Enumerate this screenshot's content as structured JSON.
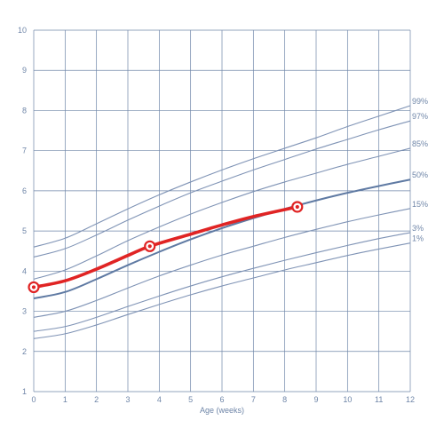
{
  "chart_data": {
    "type": "line",
    "title": "",
    "xlabel": "Age (weeks)",
    "ylabel": "",
    "xlim": [
      0,
      12
    ],
    "ylim": [
      1,
      10
    ],
    "grid": true,
    "x_ticks": [
      "0",
      "1",
      "2",
      "3",
      "4",
      "5",
      "6",
      "7",
      "8",
      "9",
      "10",
      "11",
      "12"
    ],
    "y_ticks": [
      "1",
      "2",
      "3",
      "4",
      "5",
      "6",
      "7",
      "8",
      "9",
      "10"
    ],
    "x": [
      0,
      1,
      2,
      3,
      4,
      5,
      6,
      7,
      8,
      9,
      10,
      11,
      12
    ],
    "percentile_curves": [
      {
        "name": "99%",
        "values": [
          4.6,
          4.82,
          5.18,
          5.55,
          5.9,
          6.22,
          6.52,
          6.8,
          7.06,
          7.32,
          7.6,
          7.86,
          8.12
        ]
      },
      {
        "name": "97%",
        "values": [
          4.35,
          4.56,
          4.9,
          5.27,
          5.62,
          5.95,
          6.24,
          6.52,
          6.78,
          7.04,
          7.28,
          7.52,
          7.74
        ]
      },
      {
        "name": "85%",
        "values": [
          3.8,
          4.03,
          4.38,
          4.76,
          5.1,
          5.42,
          5.71,
          5.98,
          6.22,
          6.44,
          6.66,
          6.86,
          7.06
        ]
      },
      {
        "name": "50%",
        "values": [
          3.32,
          3.48,
          3.8,
          4.15,
          4.48,
          4.79,
          5.07,
          5.32,
          5.55,
          5.76,
          5.95,
          6.12,
          6.28
        ]
      },
      {
        "name": "15%",
        "values": [
          2.85,
          3.0,
          3.27,
          3.58,
          3.88,
          4.15,
          4.4,
          4.62,
          4.84,
          5.04,
          5.23,
          5.4,
          5.56
        ]
      },
      {
        "name": "3%",
        "values": [
          2.5,
          2.62,
          2.85,
          3.12,
          3.38,
          3.63,
          3.86,
          4.07,
          4.27,
          4.46,
          4.64,
          4.81,
          4.96
        ]
      },
      {
        "name": "1%",
        "values": [
          2.32,
          2.44,
          2.66,
          2.92,
          3.17,
          3.41,
          3.63,
          3.83,
          4.03,
          4.21,
          4.39,
          4.55,
          4.7
        ]
      }
    ],
    "emphasized_curve": "50%",
    "measurement_series": {
      "x": [
        0,
        1,
        2,
        3,
        3.7,
        5,
        6,
        7,
        8.4
      ],
      "values": [
        3.6,
        3.76,
        4.05,
        4.39,
        4.62,
        4.92,
        5.15,
        5.36,
        5.6
      ],
      "marked_points": [
        {
          "x": 0,
          "y": 3.6
        },
        {
          "x": 3.7,
          "y": 4.62
        },
        {
          "x": 8.4,
          "y": 5.6
        }
      ]
    },
    "colors": {
      "grid": "#6f86a8",
      "curve": "#7f93b5",
      "emphasized_curve": "#5f7aa3",
      "measurement": "#e02424",
      "marker_center": "#ffffff",
      "text": "#6f86a8"
    }
  }
}
